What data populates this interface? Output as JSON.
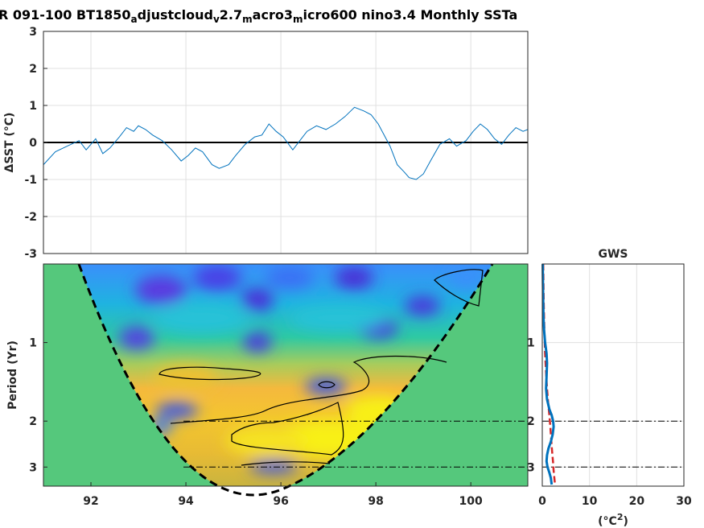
{
  "title": {
    "parts": [
      {
        "t": "R 091-100 BT1850",
        "sub": false
      },
      {
        "t": "a",
        "sub": true
      },
      {
        "t": "djustcloud",
        "sub": false
      },
      {
        "t": "v",
        "sub": true
      },
      {
        "t": "2.7",
        "sub": false
      },
      {
        "t": "m",
        "sub": true
      },
      {
        "t": "acro3",
        "sub": false
      },
      {
        "t": "m",
        "sub": true
      },
      {
        "t": "icro600 nino3.4 Monthly SSTa",
        "sub": false
      }
    ]
  },
  "chart_data": [
    {
      "type": "line",
      "ylabel": "ΔSST (°C)",
      "xlim": [
        91,
        101.2
      ],
      "ylim": [
        -3,
        3
      ],
      "yticks": [
        3,
        2,
        1,
        0,
        -1,
        -2,
        -3
      ],
      "grid": true,
      "zero_line": true,
      "series": [
        {
          "color": "#0072BD",
          "x": [
            91.0,
            91.25,
            91.5,
            91.75,
            91.9,
            92.0,
            92.1,
            92.25,
            92.4,
            92.6,
            92.75,
            92.9,
            93.0,
            93.15,
            93.3,
            93.5,
            93.7,
            93.9,
            94.05,
            94.2,
            94.35,
            94.55,
            94.7,
            94.9,
            95.05,
            95.25,
            95.45,
            95.6,
            95.75,
            95.9,
            96.05,
            96.25,
            96.4,
            96.55,
            96.75,
            96.95,
            97.15,
            97.35,
            97.55,
            97.75,
            97.9,
            98.05,
            98.3,
            98.45,
            98.6,
            98.7,
            98.85,
            99.0,
            99.15,
            99.35,
            99.55,
            99.7,
            99.9,
            100.05,
            100.2,
            100.35,
            100.5,
            100.65,
            100.8,
            100.95,
            101.1,
            101.2
          ],
          "y": [
            -0.6,
            -0.25,
            -0.1,
            0.05,
            -0.2,
            -0.05,
            0.1,
            -0.3,
            -0.15,
            0.15,
            0.4,
            0.3,
            0.45,
            0.35,
            0.2,
            0.05,
            -0.2,
            -0.5,
            -0.35,
            -0.15,
            -0.25,
            -0.6,
            -0.7,
            -0.6,
            -0.35,
            -0.05,
            0.15,
            0.2,
            0.5,
            0.3,
            0.15,
            -0.2,
            0.05,
            0.3,
            0.45,
            0.35,
            0.5,
            0.7,
            0.95,
            0.85,
            0.75,
            0.5,
            -0.1,
            -0.6,
            -0.8,
            -0.95,
            -1.0,
            -0.85,
            -0.5,
            -0.05,
            0.1,
            -0.1,
            0.05,
            0.3,
            0.5,
            0.35,
            0.1,
            -0.05,
            0.2,
            0.4,
            0.3,
            0.35
          ]
        }
      ]
    },
    {
      "type": "heatmap",
      "ylabel": "Period (Yr)",
      "xlim": [
        91,
        101.2
      ],
      "xticks": [
        92,
        94,
        96,
        98,
        100
      ],
      "yticks": [
        1,
        2,
        3
      ],
      "ylog": true,
      "reference_lines": [
        2,
        3
      ]
    },
    {
      "type": "line",
      "title": "GWS",
      "xlabel": "(°C²)",
      "xlim": [
        0,
        30
      ],
      "xticks": [
        0,
        10,
        20,
        30
      ],
      "yticks": [
        1,
        2,
        3
      ],
      "reference_lines": [
        2,
        3
      ],
      "series": [
        {
          "color": "#0072BD",
          "period": [
            0.5,
            0.6,
            0.7,
            0.8,
            0.9,
            1.0,
            1.1,
            1.2,
            1.35,
            1.5,
            1.65,
            1.8,
            1.9,
            2.0,
            2.1,
            2.25,
            2.4,
            2.55,
            2.7,
            2.85,
            3.0,
            3.15,
            3.3,
            3.5
          ],
          "power": [
            0.1,
            0.15,
            0.2,
            0.25,
            0.4,
            0.6,
            0.9,
            1.0,
            0.9,
            0.8,
            1.0,
            1.5,
            2.0,
            2.3,
            2.4,
            2.2,
            1.8,
            1.3,
            1.0,
            0.9,
            1.1,
            1.5,
            1.8,
            2.0
          ]
        },
        {
          "color": "#D62728",
          "dashed": true,
          "period": [
            0.5,
            0.7,
            0.9,
            1.1,
            1.3,
            1.5,
            1.7,
            1.9,
            2.1,
            2.3,
            2.5,
            2.7,
            2.9,
            3.1,
            3.3,
            3.5
          ],
          "power": [
            0.2,
            0.3,
            0.45,
            0.6,
            0.8,
            1.0,
            1.25,
            1.5,
            1.7,
            1.85,
            2.0,
            2.15,
            2.3,
            2.4,
            2.55,
            2.7
          ]
        }
      ]
    }
  ]
}
